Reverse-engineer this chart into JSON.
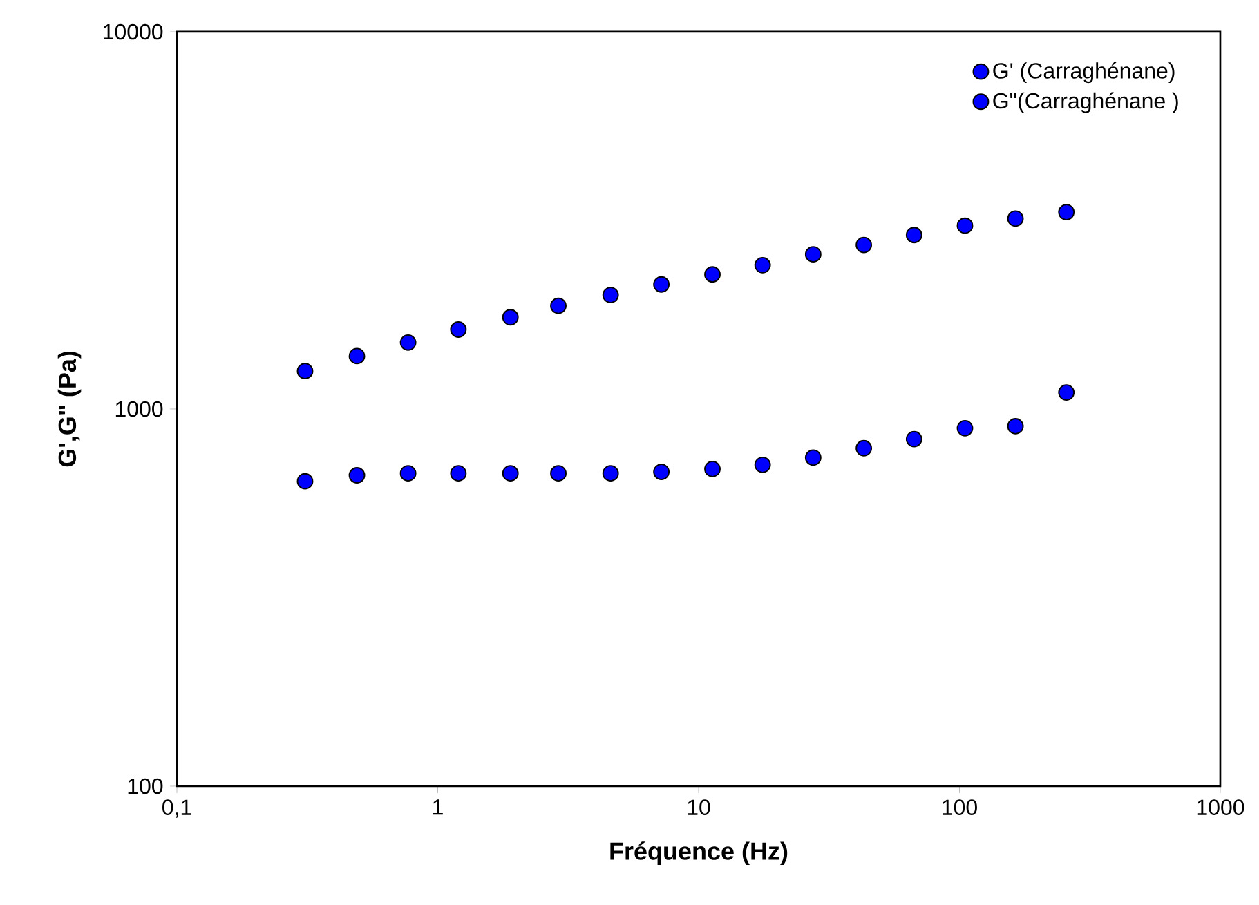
{
  "chart_data": {
    "type": "scatter",
    "xlabel": "Fréquence  (Hz)",
    "ylabel": "G',G\" (Pa)",
    "x": [
      0.31,
      0.49,
      0.77,
      1.2,
      1.9,
      2.9,
      4.6,
      7.2,
      11.3,
      17.6,
      27.5,
      43,
      67,
      105,
      164,
      257
    ],
    "series": [
      {
        "name": "G' (Carraghénane)",
        "color": "#0000ff",
        "values": [
          1260,
          1381,
          1500,
          1624,
          1750,
          1877,
          2004,
          2138,
          2273,
          2405,
          2570,
          2721,
          2891,
          3061,
          3197,
          3325
        ]
      },
      {
        "name": "G\"(Carraghénane )",
        "color": "#0000ff",
        "values": [
          643,
          667,
          675,
          675,
          675,
          675,
          675,
          681,
          693,
          711,
          743,
          787,
          832,
          889,
          900,
          1106
        ]
      }
    ],
    "xlim": [
      0.1,
      1000
    ],
    "ylim": [
      100,
      10000
    ],
    "xticks": [
      {
        "value": 0.1,
        "label": "0,1"
      },
      1,
      10,
      100,
      1000
    ],
    "yticks": [
      100,
      1000,
      10000
    ],
    "log": "xy",
    "legend": "top right",
    "marker": "circle"
  }
}
